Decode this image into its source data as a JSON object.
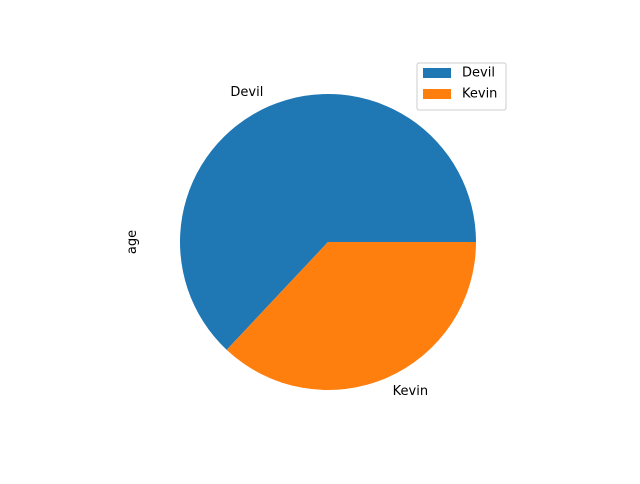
{
  "chart_data": {
    "type": "pie",
    "ylabel": "age",
    "categories": [
      "Devil",
      "Kevin"
    ],
    "values": [
      63,
      37
    ],
    "colors": [
      "#1f77b4",
      "#ff7f0e"
    ],
    "start_angle_deg": 0,
    "direction": "counterclockwise",
    "legend": {
      "placement": "top-right",
      "entries": [
        "Devil",
        "Kevin"
      ]
    }
  }
}
